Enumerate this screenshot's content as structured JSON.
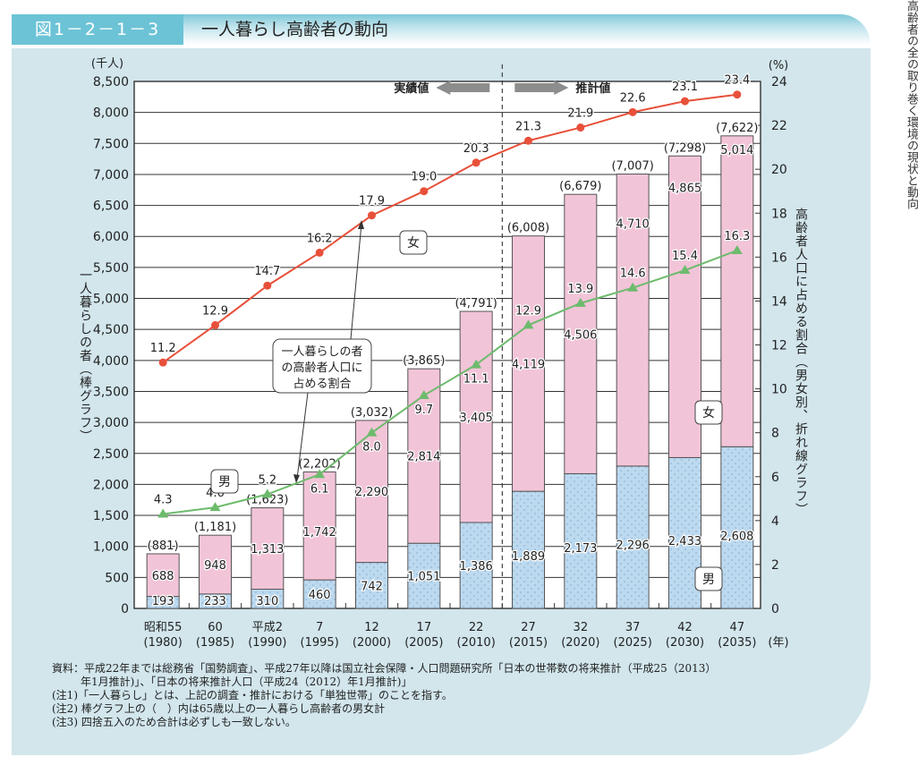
{
  "header": {
    "figure_number": "図1－2－1－3",
    "title": "一人暮らし高齢者の動向"
  },
  "side_text": "高齢者の全の取り巻く環境の現状と動向",
  "chart_data": {
    "type": "bar",
    "title": "一人暮らし高齢者の動向",
    "categories": [
      "昭和55",
      "60",
      "平成2",
      "7",
      "12",
      "17",
      "22",
      "27",
      "32",
      "37",
      "42",
      "47"
    ],
    "category_years": [
      "(1980)",
      "(1985)",
      "(1990)",
      "(1995)",
      "(2000)",
      "(2005)",
      "(2010)",
      "(2015)",
      "(2020)",
      "(2025)",
      "(2030)",
      "(2035)"
    ],
    "x_unit": "(年)",
    "left_axis": {
      "unit": "(千人)",
      "label": "一人暮らしの者（棒グラフ）",
      "range": [
        0,
        8500
      ],
      "ticks": [
        "0",
        "500",
        "1,000",
        "1,500",
        "2,000",
        "2,500",
        "3,000",
        "3,500",
        "4,000",
        "4,500",
        "5,000",
        "5,500",
        "6,000",
        "6,500",
        "7,000",
        "7,500",
        "8,000",
        "8,500"
      ],
      "tick_values": [
        0,
        500,
        1000,
        1500,
        2000,
        2500,
        3000,
        3500,
        4000,
        4500,
        5000,
        5500,
        6000,
        6500,
        7000,
        7500,
        8000,
        8500
      ]
    },
    "right_axis": {
      "unit": "(%)",
      "label": "高齢者人口に占める割合（男女別、折れ線グラフ）",
      "range": [
        0,
        24
      ],
      "ticks": [
        "0",
        "2",
        "4",
        "6",
        "8",
        "10",
        "12",
        "14",
        "16",
        "18",
        "20",
        "22",
        "24"
      ],
      "tick_values": [
        0,
        2,
        4,
        6,
        8,
        10,
        12,
        14,
        16,
        18,
        20,
        22,
        24
      ]
    },
    "bar_series": [
      {
        "name": "男",
        "color": "#bcd9ef",
        "values": [
          193,
          233,
          310,
          460,
          742,
          1051,
          1386,
          1889,
          2173,
          2296,
          2433,
          2608
        ],
        "labels": [
          "193",
          "233",
          "310",
          "460",
          "742",
          "1,051",
          "1,386",
          "1,889",
          "2,173",
          "2,296",
          "2,433",
          "2,608"
        ]
      },
      {
        "name": "女",
        "color": "#f2c4d8",
        "values": [
          688,
          948,
          1313,
          1742,
          2290,
          2814,
          3405,
          4119,
          4506,
          4710,
          4865,
          5014
        ],
        "labels": [
          "688",
          "948",
          "1,313",
          "1,742",
          "2,290",
          "2,814",
          "3,405",
          "4,119",
          "4,506",
          "4,710",
          "4,865",
          "5,014"
        ]
      }
    ],
    "bar_totals": {
      "values": [
        881,
        1181,
        1623,
        2202,
        3032,
        3865,
        4791,
        6008,
        6679,
        7007,
        7298,
        7622
      ],
      "labels": [
        "(881)",
        "(1,181)",
        "(1,623)",
        "(2,202)",
        "(3,032)",
        "(3,865)",
        "(4,791)",
        "(6,008)",
        "(6,679)",
        "(7,007)",
        "(7,298)",
        "(7,622)"
      ]
    },
    "line_series": [
      {
        "name": "女",
        "axis": "right",
        "color": "#e8503a",
        "marker": "circle",
        "values": [
          11.2,
          12.9,
          14.7,
          16.2,
          17.9,
          19.0,
          20.3,
          21.3,
          21.9,
          22.6,
          23.1,
          23.4
        ],
        "labels": [
          "11.2",
          "12.9",
          "14.7",
          "16.2",
          "17.9",
          "19.0",
          "20.3",
          "21.3",
          "21.9",
          "22.6",
          "23.1",
          "23.4"
        ]
      },
      {
        "name": "男",
        "axis": "right",
        "color": "#6dbb6d",
        "marker": "triangle",
        "values": [
          4.3,
          4.6,
          5.2,
          6.1,
          8.0,
          9.7,
          11.1,
          12.9,
          13.9,
          14.6,
          15.4,
          16.3
        ],
        "labels": [
          "4.3",
          "4.6",
          "5.2",
          "6.1",
          "8.0",
          "9.7",
          "11.1",
          "12.9",
          "13.9",
          "14.6",
          "15.4",
          "16.3"
        ]
      }
    ],
    "annotations": {
      "actual_label": "実績値",
      "projection_label": "推計値",
      "callout": [
        "一人暮らしの者",
        "の高齢者人口に",
        "占める割合"
      ],
      "line_female_tag": "女",
      "line_male_tag": "男",
      "bar_female_tag": "女",
      "bar_male_tag": "男"
    },
    "grid": true,
    "projection_start_index": 7
  },
  "notes": [
    "資料：平成22年までは総務省「国勢調査」、平成27年以降は国立社会保障・人口問題研究所「日本の世帯数の将来推計（平成25（2013）",
    "年1月推計)」、「日本の将来推計人口（平成24（2012）年1月推計)」",
    "(注1)「一人暮らし」とは、上記の調査・推計における「単独世帯」のことを指す。",
    "(注2) 棒グラフ上の（　）内は65歳以上の一人暮らし高齢者の男女計",
    "(注3) 四捨五入のため合計は必ずしも一致しない。"
  ]
}
